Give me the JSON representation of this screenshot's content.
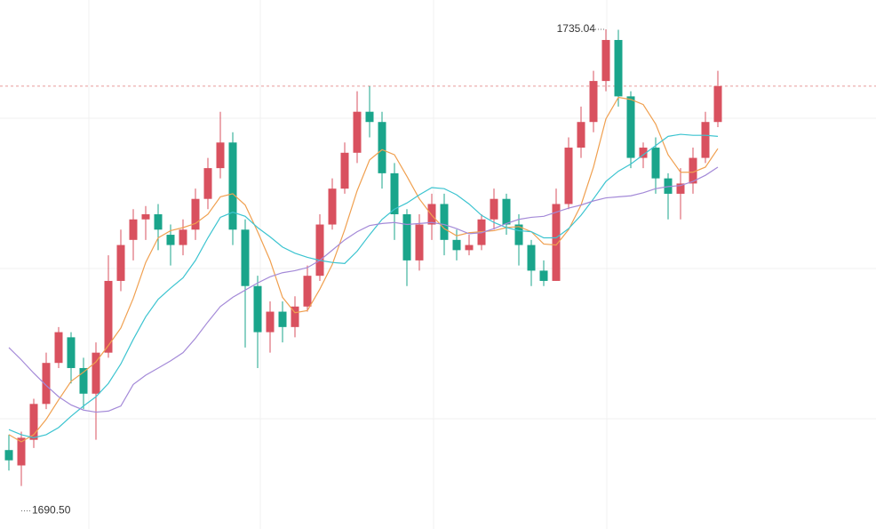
{
  "chart_data": {
    "type": "candlestick",
    "ylim": [
      1686.3,
      1737.9
    ],
    "up_color": "#d9515f",
    "down_color": "#1aa58b",
    "open": [
      1694.0,
      1692.5,
      1695.0,
      1698.5,
      1702.5,
      1705.0,
      1702.0,
      1699.5,
      1703.5,
      1710.5,
      1714.5,
      1716.5,
      1717.0,
      1715.0,
      1714.0,
      1715.5,
      1718.5,
      1721.5,
      1724.0,
      1715.5,
      1710.0,
      1705.5,
      1707.5,
      1706.0,
      1708.0,
      1711.0,
      1716.0,
      1719.5,
      1723.0,
      1727.0,
      1726.0,
      1721.0,
      1717.0,
      1712.5,
      1716.0,
      1718.0,
      1714.5,
      1713.5,
      1714.0,
      1716.5,
      1718.5,
      1716.0,
      1714.0,
      1711.5,
      1710.5,
      1718.0,
      1723.5,
      1726.0,
      1730.0,
      1734.0,
      1728.5,
      1722.5,
      1723.5,
      1720.5,
      1719.0,
      1720.0,
      1722.5,
      1726.0
    ],
    "high": [
      1695.5,
      1695.8,
      1699.0,
      1703.5,
      1706.0,
      1705.5,
      1703.0,
      1704.5,
      1713.0,
      1715.5,
      1717.5,
      1717.8,
      1718.0,
      1716.0,
      1716.5,
      1719.5,
      1722.5,
      1727.0,
      1725.0,
      1716.5,
      1711.0,
      1708.5,
      1708.5,
      1709.0,
      1712.0,
      1717.0,
      1720.5,
      1724.0,
      1729.0,
      1729.5,
      1727.0,
      1722.0,
      1717.5,
      1717.0,
      1719.0,
      1719.0,
      1715.5,
      1715.0,
      1717.0,
      1719.5,
      1719.0,
      1717.0,
      1714.5,
      1712.5,
      1719.5,
      1724.5,
      1727.5,
      1731.0,
      1735.04,
      1735.0,
      1729.0,
      1724.0,
      1724.5,
      1721.0,
      1721.5,
      1723.5,
      1727.0,
      1731.0
    ],
    "low": [
      1692.0,
      1690.5,
      1694.2,
      1698.0,
      1702.0,
      1700.5,
      1698.0,
      1695.0,
      1703.0,
      1709.5,
      1712.5,
      1714.5,
      1713.5,
      1712.0,
      1713.0,
      1714.5,
      1717.5,
      1720.5,
      1714.0,
      1704.0,
      1702.0,
      1703.5,
      1704.5,
      1705.0,
      1707.5,
      1710.5,
      1715.5,
      1719.0,
      1722.0,
      1724.5,
      1719.5,
      1714.5,
      1710.0,
      1711.5,
      1714.5,
      1713.0,
      1712.5,
      1713.0,
      1713.5,
      1715.5,
      1715.0,
      1712.0,
      1710.0,
      1710.0,
      1710.5,
      1717.5,
      1722.5,
      1725.0,
      1729.0,
      1727.5,
      1721.5,
      1721.5,
      1719.0,
      1716.5,
      1716.5,
      1719.0,
      1722.0,
      1725.5
    ],
    "close": [
      1693.0,
      1695.2,
      1698.5,
      1702.5,
      1705.5,
      1702.0,
      1699.5,
      1703.5,
      1710.5,
      1714.0,
      1716.5,
      1717.0,
      1715.5,
      1714.0,
      1715.5,
      1718.5,
      1721.5,
      1724.0,
      1715.5,
      1710.0,
      1705.5,
      1707.5,
      1706.0,
      1708.0,
      1711.0,
      1716.0,
      1719.5,
      1723.0,
      1727.0,
      1726.0,
      1721.0,
      1717.0,
      1712.5,
      1716.0,
      1718.0,
      1714.5,
      1713.5,
      1714.0,
      1716.5,
      1718.5,
      1716.0,
      1714.0,
      1711.5,
      1710.5,
      1718.0,
      1723.5,
      1726.0,
      1730.0,
      1734.0,
      1728.5,
      1722.5,
      1723.5,
      1720.5,
      1719.0,
      1720.0,
      1722.5,
      1726.0,
      1729.5
    ],
    "lines": [
      {
        "color": "#f0a050",
        "values": [
          1695.5,
          1694.8,
          1695.5,
          1697.0,
          1698.9,
          1700.7,
          1701.6,
          1702.6,
          1704.2,
          1705.9,
          1708.8,
          1712.3,
          1714.7,
          1715.4,
          1715.7,
          1716.1,
          1717.0,
          1718.7,
          1719.0,
          1717.9,
          1715.3,
          1712.5,
          1708.9,
          1707.4,
          1707.6,
          1709.7,
          1712.1,
          1715.5,
          1719.3,
          1722.3,
          1723.3,
          1722.8,
          1720.7,
          1718.5,
          1716.9,
          1715.6,
          1714.9,
          1715.2,
          1715.3,
          1715.4,
          1715.7,
          1715.8,
          1715.3,
          1714.1,
          1714.0,
          1715.5,
          1717.9,
          1721.6,
          1726.3,
          1728.4,
          1728.2,
          1727.7,
          1725.8,
          1722.8,
          1721.1,
          1721.1,
          1721.6,
          1723.4
        ]
      },
      {
        "color": "#3cc4d0",
        "values": [
          1696.0,
          1695.5,
          1695.2,
          1695.5,
          1696.2,
          1697.3,
          1698.3,
          1699.2,
          1700.5,
          1702.4,
          1704.8,
          1707.0,
          1708.7,
          1709.8,
          1710.8,
          1712.5,
          1714.7,
          1716.7,
          1717.2,
          1716.8,
          1715.7,
          1714.8,
          1713.8,
          1713.2,
          1712.8,
          1712.5,
          1712.3,
          1712.2,
          1713.4,
          1715.0,
          1716.5,
          1717.5,
          1718.1,
          1718.9,
          1719.6,
          1719.5,
          1718.9,
          1718.0,
          1716.9,
          1716.2,
          1715.7,
          1715.4,
          1715.3,
          1714.7,
          1714.7,
          1715.6,
          1716.9,
          1718.5,
          1720.2,
          1721.2,
          1721.9,
          1722.8,
          1723.7,
          1724.6,
          1724.8,
          1724.7,
          1724.7,
          1724.6
        ]
      },
      {
        "color": "#a48ad8",
        "values": [
          1704.0,
          1702.8,
          1701.5,
          1700.3,
          1699.2,
          1698.4,
          1697.9,
          1697.7,
          1697.8,
          1698.3,
          1700.4,
          1701.3,
          1702.0,
          1702.7,
          1703.5,
          1704.9,
          1706.5,
          1708.0,
          1708.9,
          1709.6,
          1710.3,
          1710.9,
          1711.3,
          1711.5,
          1711.8,
          1712.5,
          1713.5,
          1714.5,
          1715.3,
          1715.9,
          1716.1,
          1716.2,
          1716.0,
          1716.1,
          1716.2,
          1716.0,
          1715.6,
          1715.1,
          1715.2,
          1715.6,
          1716.1,
          1716.5,
          1716.7,
          1716.8,
          1717.2,
          1717.6,
          1717.9,
          1718.3,
          1718.6,
          1718.7,
          1718.8,
          1719.1,
          1719.5,
          1719.7,
          1719.8,
          1720.2,
          1720.8,
          1721.6
        ]
      }
    ],
    "annotations": [
      {
        "value": 1735.04,
        "label": "1735.04"
      },
      {
        "value": 1690.5,
        "label": "1690.50"
      }
    ]
  }
}
